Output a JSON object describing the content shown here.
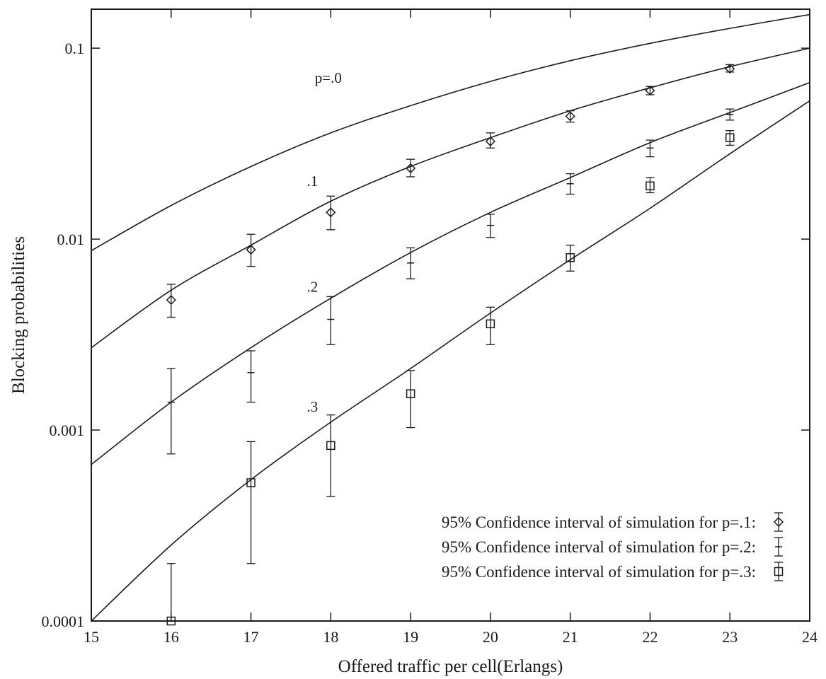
{
  "chart_data": {
    "type": "line",
    "title": "",
    "xlabel": "Offered traffic per cell(Erlangs)",
    "ylabel": "Blocking probabilities",
    "xlim": [
      15,
      24
    ],
    "ylim": [
      0.0001,
      0.16
    ],
    "y_scale": "log",
    "grid": false,
    "x_ticks": [
      {
        "value": 15,
        "label": "15"
      },
      {
        "value": 16,
        "label": "16"
      },
      {
        "value": 17,
        "label": "17"
      },
      {
        "value": 18,
        "label": "18"
      },
      {
        "value": 19,
        "label": "19"
      },
      {
        "value": 20,
        "label": "20"
      },
      {
        "value": 21,
        "label": "21"
      },
      {
        "value": 22,
        "label": "22"
      },
      {
        "value": 23,
        "label": "23"
      },
      {
        "value": 24,
        "label": "24"
      }
    ],
    "y_ticks": [
      {
        "value": 0.0001,
        "label": "0.0001"
      },
      {
        "value": 0.001,
        "label": "0.001"
      },
      {
        "value": 0.01,
        "label": "0.01"
      },
      {
        "value": 0.1,
        "label": "0.1"
      }
    ],
    "curves": [
      {
        "label": "p=.0",
        "label_at": [
          17.8,
          0.066
        ],
        "x": [
          15,
          16,
          17,
          18,
          19,
          20,
          21,
          22,
          23,
          24
        ],
        "y": [
          0.0087,
          0.015,
          0.024,
          0.036,
          0.05,
          0.067,
          0.086,
          0.106,
          0.127,
          0.15
        ]
      },
      {
        "label": ".1",
        "label_at": [
          17.7,
          0.019
        ],
        "x": [
          15,
          16,
          17,
          18,
          19,
          20,
          21,
          22,
          23,
          24
        ],
        "y": [
          0.0027,
          0.0054,
          0.0093,
          0.0158,
          0.024,
          0.034,
          0.047,
          0.062,
          0.08,
          0.1
        ]
      },
      {
        "label": ".2",
        "label_at": [
          17.7,
          0.0053
        ],
        "x": [
          15,
          16,
          17,
          18,
          19,
          20,
          21,
          22,
          23,
          24
        ],
        "y": [
          0.00066,
          0.0014,
          0.0027,
          0.0049,
          0.0085,
          0.0138,
          0.021,
          0.032,
          0.046,
          0.066
        ]
      },
      {
        "label": ".3",
        "label_at": [
          17.7,
          0.00125
        ],
        "x": [
          15,
          16,
          17,
          18,
          19,
          20,
          21,
          22,
          23,
          24
        ],
        "y": [
          0.0001,
          0.00025,
          0.00055,
          0.0011,
          0.0021,
          0.0041,
          0.0078,
          0.0145,
          0.028,
          0.053
        ]
      }
    ],
    "series": [
      {
        "name": "95% Confidence interval of simulation for p=.1:",
        "marker": "diamond",
        "x": [
          16,
          17,
          18,
          19,
          20,
          21,
          22,
          23
        ],
        "y": [
          0.0048,
          0.0088,
          0.0138,
          0.0235,
          0.0325,
          0.044,
          0.06,
          0.078
        ],
        "low": [
          0.0039,
          0.0072,
          0.0112,
          0.0212,
          0.03,
          0.041,
          0.057,
          0.075
        ],
        "high": [
          0.0058,
          0.0106,
          0.0168,
          0.0262,
          0.036,
          0.047,
          0.063,
          0.082
        ]
      },
      {
        "name": "95% Confidence interval of simulation for p=.2:",
        "marker": "plus",
        "x": [
          16,
          17,
          18,
          19,
          20,
          21,
          22,
          23
        ],
        "y": [
          0.0014,
          0.002,
          0.0038,
          0.0075,
          0.0118,
          0.0195,
          0.03,
          0.045
        ],
        "low": [
          0.00075,
          0.0014,
          0.0028,
          0.0062,
          0.0102,
          0.0172,
          0.027,
          0.042
        ],
        "high": [
          0.0021,
          0.0026,
          0.005,
          0.009,
          0.0135,
          0.022,
          0.033,
          0.048
        ]
      },
      {
        "name": "95% Confidence interval of simulation for p=.3:",
        "marker": "square",
        "x": [
          16,
          17,
          18,
          19,
          20,
          21,
          22,
          23
        ],
        "y": [
          0.0001,
          0.00053,
          0.00083,
          0.00155,
          0.0036,
          0.008,
          0.019,
          0.034
        ],
        "low": [
          0.0001,
          0.0002,
          0.00045,
          0.00103,
          0.0028,
          0.0068,
          0.0175,
          0.031
        ],
        "high": [
          0.0002,
          0.00087,
          0.0012,
          0.00205,
          0.0044,
          0.0093,
          0.021,
          0.037
        ]
      }
    ],
    "legend": {
      "position": "bottom-right"
    }
  }
}
